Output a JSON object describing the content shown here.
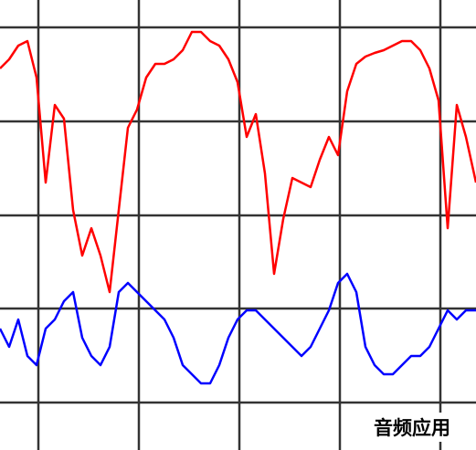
{
  "chart_data": {
    "type": "line",
    "annotation": "音频应用",
    "x": [
      0,
      10,
      20,
      30,
      40,
      50,
      60,
      70,
      80,
      90,
      100,
      110,
      120,
      130,
      140,
      150,
      160,
      170,
      180,
      190,
      200,
      210,
      220,
      230,
      240,
      250,
      260,
      270,
      280,
      290,
      300,
      310,
      320,
      330,
      340,
      350,
      360,
      370,
      380,
      390,
      400,
      410,
      420,
      430,
      440,
      450,
      460,
      470,
      480,
      490,
      500,
      510,
      521
    ],
    "series": [
      {
        "color": "#ff0000",
        "values": [
          418,
          428,
          443,
          448,
          408,
          293,
          378,
          363,
          263,
          213,
          243,
          213,
          173,
          263,
          353,
          373,
          408,
          423,
          423,
          428,
          438,
          458,
          458,
          448,
          443,
          428,
          403,
          343,
          368,
          303,
          193,
          253,
          298,
          293,
          288,
          318,
          343,
          323,
          393,
          423,
          431,
          435,
          438,
          443,
          448,
          448,
          438,
          418,
          383,
          243,
          378,
          343,
          293
        ]
      },
      {
        "color": "#0000ff",
        "values": [
          133,
          113,
          143,
          103,
          93,
          133,
          143,
          163,
          173,
          123,
          103,
          93,
          113,
          173,
          183,
          173,
          163,
          153,
          143,
          123,
          93,
          83,
          73,
          73,
          93,
          123,
          143,
          153,
          153,
          143,
          133,
          123,
          113,
          103,
          113,
          133,
          153,
          183,
          193,
          173,
          113,
          93,
          83,
          83,
          93,
          103,
          103,
          113,
          133,
          153,
          143,
          153,
          153
        ]
      }
    ],
    "xlim": [
      0,
      521
    ],
    "xticks": [
      42,
      152,
      262,
      372,
      482
    ],
    "ylim": [
      0,
      493
    ],
    "yticks": [
      52,
      155,
      257,
      360,
      463
    ],
    "grid": true
  }
}
